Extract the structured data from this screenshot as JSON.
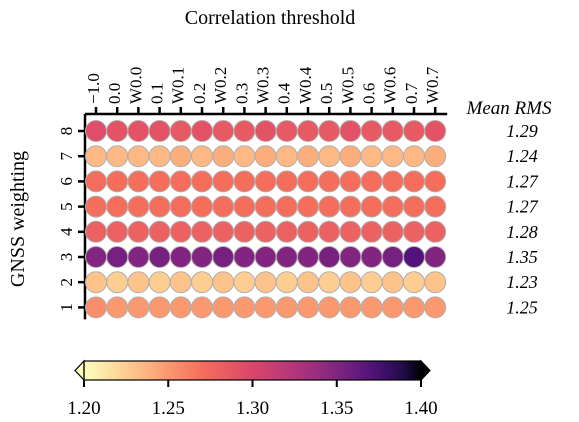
{
  "chart_data": {
    "type": "heatmap",
    "title": "",
    "xlabel": "Correlation threshold",
    "ylabel": "GNSS weighting",
    "x_tick_labels": [
      "−1.0",
      "0.0",
      "W0.0",
      "0.1",
      "W0.1",
      "0.2",
      "W0.2",
      "0.3",
      "W0.3",
      "0.4",
      "W0.4",
      "0.5",
      "W0.5",
      "0.6",
      "W0.6",
      "0.7",
      "W0.7"
    ],
    "y_tick_labels": [
      "8",
      "7",
      "6",
      "5",
      "4",
      "3",
      "2",
      "1"
    ],
    "row_summary_header": "Mean RMS",
    "row_summary_values": [
      "1.29",
      "1.24",
      "1.27",
      "1.27",
      "1.28",
      "1.35",
      "1.23",
      "1.25"
    ],
    "values": [
      [
        1.295,
        1.29,
        1.29,
        1.29,
        1.285,
        1.29,
        1.285,
        1.285,
        1.29,
        1.285,
        1.285,
        1.285,
        1.29,
        1.285,
        1.285,
        1.285,
        1.29
      ],
      [
        1.235,
        1.235,
        1.235,
        1.235,
        1.24,
        1.235,
        1.24,
        1.235,
        1.24,
        1.235,
        1.24,
        1.235,
        1.24,
        1.235,
        1.235,
        1.235,
        1.24
      ],
      [
        1.27,
        1.27,
        1.27,
        1.27,
        1.27,
        1.27,
        1.27,
        1.27,
        1.27,
        1.27,
        1.27,
        1.27,
        1.27,
        1.27,
        1.27,
        1.27,
        1.27
      ],
      [
        1.27,
        1.27,
        1.27,
        1.27,
        1.27,
        1.27,
        1.27,
        1.27,
        1.27,
        1.27,
        1.27,
        1.27,
        1.27,
        1.27,
        1.27,
        1.27,
        1.27
      ],
      [
        1.28,
        1.28,
        1.28,
        1.28,
        1.28,
        1.28,
        1.28,
        1.28,
        1.28,
        1.28,
        1.28,
        1.28,
        1.28,
        1.28,
        1.28,
        1.28,
        1.28
      ],
      [
        1.35,
        1.355,
        1.35,
        1.355,
        1.35,
        1.35,
        1.355,
        1.35,
        1.35,
        1.35,
        1.35,
        1.355,
        1.35,
        1.35,
        1.355,
        1.37,
        1.35
      ],
      [
        1.23,
        1.225,
        1.23,
        1.225,
        1.23,
        1.225,
        1.23,
        1.225,
        1.23,
        1.225,
        1.23,
        1.225,
        1.23,
        1.225,
        1.23,
        1.225,
        1.23
      ],
      [
        1.255,
        1.25,
        1.25,
        1.25,
        1.25,
        1.25,
        1.25,
        1.25,
        1.25,
        1.25,
        1.25,
        1.25,
        1.25,
        1.25,
        1.25,
        1.25,
        1.25
      ]
    ],
    "colormap": "magma_r",
    "colorbar": {
      "range": [
        1.2,
        1.4
      ],
      "ticks": [
        1.2,
        1.25,
        1.3,
        1.35,
        1.4
      ],
      "tick_labels": [
        "1.20",
        "1.25",
        "1.30",
        "1.35",
        "1.40"
      ],
      "extend": "both",
      "orientation": "horizontal",
      "placement": "bottom"
    },
    "grid": false
  }
}
